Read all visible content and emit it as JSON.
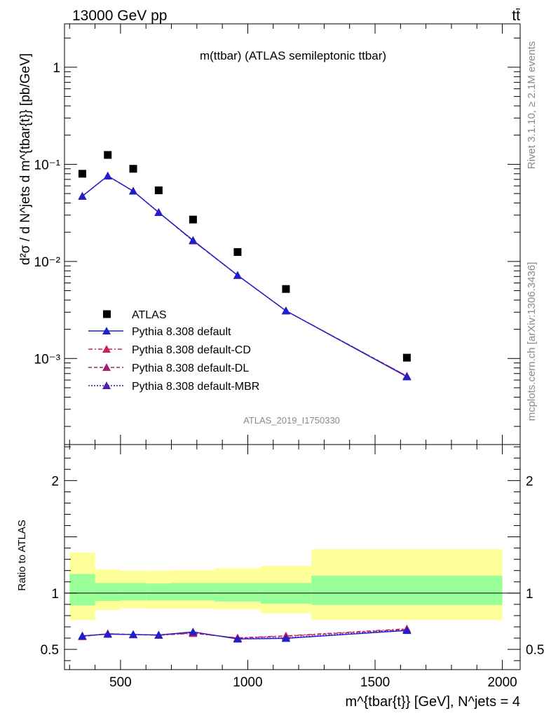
{
  "header": {
    "left": "13000 GeV pp",
    "right": "tt̄"
  },
  "side_labels": {
    "rivet": "Rivet 3.1.10, ≥ 2.1M events",
    "mcplots": "mcplots.cern.ch [arXiv:1306.3436]"
  },
  "chart_data": [
    {
      "type": "scatter",
      "title": "m(ttbar) (ATLAS semileptonic ttbar)",
      "ylabel": "d²σ / d N^jets d m^{tbar{t}} [pb/GeV]",
      "yscale": "log",
      "ylim": [
        0.00013,
        2.8
      ],
      "xlim": [
        280,
        2070
      ],
      "y_ticks": [
        {
          "value": 1,
          "label": "1"
        },
        {
          "value": 0.1,
          "label": "10⁻¹"
        },
        {
          "value": 0.01,
          "label": "10⁻²"
        },
        {
          "value": 0.001,
          "label": "10⁻³"
        }
      ],
      "watermark": "ATLAS_2019_I1750330",
      "data": {
        "name": "ATLAS",
        "x": [
          350,
          450,
          550,
          650,
          785,
          960,
          1150,
          1625
        ],
        "y": [
          0.08,
          0.125,
          0.09,
          0.054,
          0.027,
          0.0125,
          0.0052,
          0.00102
        ]
      },
      "series": [
        {
          "name": "Pythia 8.308 default",
          "color": "#1f1fcc",
          "dash": "solid",
          "x": [
            350,
            450,
            550,
            650,
            785,
            960,
            1150,
            1625
          ],
          "y": [
            0.047,
            0.076,
            0.053,
            0.032,
            0.0165,
            0.0072,
            0.0031,
            0.00065
          ]
        },
        {
          "name": "Pythia 8.308 default-CD",
          "color": "#cc1f5a",
          "dash": "dashdot",
          "x": [
            350,
            450,
            550,
            650,
            785,
            960,
            1150,
            1625
          ],
          "y": [
            0.047,
            0.076,
            0.053,
            0.032,
            0.0163,
            0.0072,
            0.0031,
            0.00066
          ]
        },
        {
          "name": "Pythia 8.308 default-DL",
          "color": "#a3206e",
          "dash": "dashed",
          "x": [
            350,
            450,
            550,
            650,
            785,
            960,
            1150,
            1625
          ],
          "y": [
            0.047,
            0.076,
            0.053,
            0.032,
            0.0163,
            0.0072,
            0.0031,
            0.00066
          ]
        },
        {
          "name": "Pythia 8.308 default-MBR",
          "color": "#4a1fb0",
          "dash": "dotted",
          "x": [
            350,
            450,
            550,
            650,
            785,
            960,
            1150,
            1625
          ],
          "y": [
            0.047,
            0.076,
            0.053,
            0.032,
            0.0165,
            0.0072,
            0.0031,
            0.00065
          ]
        }
      ],
      "legend": "lower-left"
    },
    {
      "type": "line",
      "ylabel": "Ratio to ATLAS",
      "xlabel": "m^{tbar{t}} [GeV], N^jets = 4",
      "ylim": [
        0.32,
        2.32
      ],
      "xlim": [
        280,
        2070
      ],
      "x_ticks": [
        500,
        1000,
        1500,
        2000
      ],
      "y_ticks": [
        0.5,
        1,
        2
      ],
      "bins": [
        300,
        400,
        500,
        600,
        700,
        870,
        1050,
        1250,
        2000
      ],
      "band_outer": [
        [
          0.76,
          1.36
        ],
        [
          0.85,
          1.21
        ],
        [
          0.865,
          1.2
        ],
        [
          0.86,
          1.2
        ],
        [
          0.86,
          1.205
        ],
        [
          0.855,
          1.22
        ],
        [
          0.82,
          1.24
        ],
        [
          0.76,
          1.39
        ]
      ],
      "band_inner": [
        [
          0.89,
          1.17
        ],
        [
          0.93,
          1.09
        ],
        [
          0.935,
          1.09
        ],
        [
          0.935,
          1.085
        ],
        [
          0.935,
          1.09
        ],
        [
          0.925,
          1.09
        ],
        [
          0.905,
          1.09
        ],
        [
          0.895,
          1.155
        ]
      ],
      "colors": {
        "outer": "#ffff99",
        "inner": "#99ff99",
        "ratio_line": "#000000"
      },
      "series": [
        {
          "name": "Pythia 8.308 default",
          "color": "#1f1fcc",
          "x": [
            350,
            450,
            550,
            650,
            785,
            960,
            1150,
            1625
          ],
          "y": [
            0.62,
            0.635,
            0.632,
            0.628,
            0.655,
            0.592,
            0.598,
            0.668
          ]
        },
        {
          "name": "Pythia 8.308 default-CD",
          "color": "#cc1f5a",
          "x": [
            350,
            450,
            550,
            650,
            785,
            960,
            1150,
            1625
          ],
          "y": [
            0.616,
            0.638,
            0.633,
            0.625,
            0.642,
            0.603,
            0.62,
            0.683
          ]
        },
        {
          "name": "Pythia 8.308 default-DL",
          "color": "#a3206e",
          "x": [
            350,
            450,
            550,
            650,
            785,
            960,
            1150,
            1625
          ],
          "y": [
            0.614,
            0.64,
            0.63,
            0.627,
            0.646,
            0.6,
            0.617,
            0.677
          ]
        },
        {
          "name": "Pythia 8.308 default-MBR",
          "color": "#4a1fb0",
          "x": [
            350,
            450,
            550,
            650,
            785,
            960,
            1150,
            1625
          ],
          "y": [
            0.62,
            0.637,
            0.632,
            0.628,
            0.653,
            0.595,
            0.603,
            0.672
          ]
        }
      ]
    }
  ]
}
